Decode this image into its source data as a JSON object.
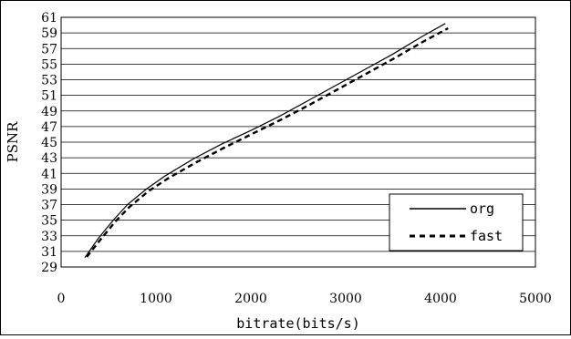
{
  "chart_data": {
    "type": "line",
    "title": "",
    "xlabel": "bitrate(bits/s)",
    "ylabel": "PSNR",
    "xlim": [
      0,
      5000
    ],
    "ylim": [
      29,
      61
    ],
    "x_ticks": [
      0,
      1000,
      2000,
      3000,
      4000,
      5000
    ],
    "x_tick_labels": [
      "0",
      "1000",
      "2000",
      "3000",
      "4000",
      "5000"
    ],
    "y_ticks": [
      29,
      31,
      33,
      35,
      37,
      39,
      41,
      43,
      45,
      47,
      49,
      51,
      53,
      55,
      57,
      59,
      61
    ],
    "y_tick_labels": [
      "29",
      "31",
      "33",
      "35",
      "37",
      "39",
      "41",
      "43",
      "45",
      "47",
      "49",
      "51",
      "53",
      "55",
      "57",
      "59",
      "61"
    ],
    "grid": "horizontal",
    "legend": "bottom-right",
    "series": [
      {
        "name": "org",
        "style": "solid",
        "color": "#000000",
        "x": [
          250,
          400,
          550,
          700,
          900,
          1100,
          1400,
          1700,
          2000,
          2300,
          2600,
          2900,
          3200,
          3500,
          3800,
          4050
        ],
        "y": [
          30.2,
          32.8,
          35.0,
          37.0,
          39.0,
          40.7,
          42.9,
          44.8,
          46.5,
          48.3,
          50.3,
          52.3,
          54.3,
          56.3,
          58.5,
          60.2
        ]
      },
      {
        "name": "fast",
        "style": "dashed",
        "color": "#000000",
        "x": [
          270,
          420,
          570,
          720,
          920,
          1120,
          1420,
          1720,
          2020,
          2320,
          2620,
          2920,
          3220,
          3520,
          3820,
          4080
        ],
        "y": [
          30.3,
          32.6,
          34.8,
          36.7,
          38.7,
          40.3,
          42.4,
          44.3,
          46.1,
          47.9,
          49.8,
          51.8,
          53.8,
          55.8,
          57.9,
          59.6
        ]
      }
    ]
  }
}
